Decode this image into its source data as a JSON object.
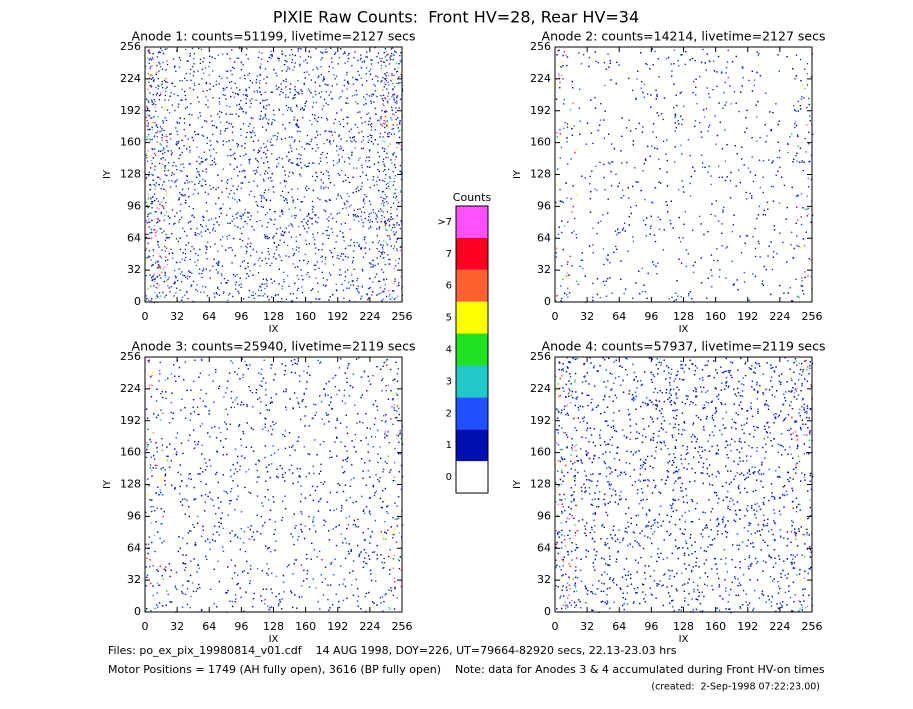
{
  "title": "PIXIE Raw Counts:  Front HV=28, Rear HV=34",
  "chart_data": [
    {
      "type": "heatmap",
      "title": "Anode 1: counts=51199, livetime=2127 secs",
      "xlabel": "IX",
      "ylabel": "IY",
      "xlim": [
        0,
        256
      ],
      "ylim": [
        0,
        256
      ],
      "xticks": [
        0,
        32,
        64,
        96,
        128,
        160,
        192,
        224,
        256
      ],
      "yticks": [
        0,
        32,
        64,
        96,
        128,
        160,
        192,
        224,
        256
      ]
    },
    {
      "type": "heatmap",
      "title": "Anode 2: counts=14214, livetime=2127 secs",
      "xlabel": "IX",
      "ylabel": "IY",
      "xlim": [
        0,
        256
      ],
      "ylim": [
        0,
        256
      ],
      "xticks": [
        0,
        32,
        64,
        96,
        128,
        160,
        192,
        224,
        256
      ],
      "yticks": [
        0,
        32,
        64,
        96,
        128,
        160,
        192,
        224,
        256
      ]
    },
    {
      "type": "heatmap",
      "title": "Anode 3: counts=25940, livetime=2119 secs",
      "xlabel": "IX",
      "ylabel": "IY",
      "xlim": [
        0,
        256
      ],
      "ylim": [
        0,
        256
      ],
      "xticks": [
        0,
        32,
        64,
        96,
        128,
        160,
        192,
        224,
        256
      ],
      "yticks": [
        0,
        32,
        64,
        96,
        128,
        160,
        192,
        224,
        256
      ]
    },
    {
      "type": "heatmap",
      "title": "Anode 4: counts=57937, livetime=2119 secs",
      "xlabel": "IX",
      "ylabel": "IY",
      "xlim": [
        0,
        256
      ],
      "ylim": [
        0,
        256
      ],
      "xticks": [
        0,
        32,
        64,
        96,
        128,
        160,
        192,
        224,
        256
      ],
      "yticks": [
        0,
        32,
        64,
        96,
        128,
        160,
        192,
        224,
        256
      ]
    }
  ],
  "colorbar": {
    "title": "Counts",
    "ticks": [
      0,
      1,
      2,
      3,
      4,
      5,
      6,
      7,
      {
        "value": 8,
        "label": ">7"
      }
    ],
    "colors": [
      "#ffffff",
      "#0010b0",
      "#2050ff",
      "#20c8c8",
      "#20e020",
      "#ffff00",
      "#ff6030",
      "#ff0020",
      "#ff50ff"
    ]
  },
  "footer": [
    "Files: po_ex_pix_19980814_v01.cdf    14 AUG 1998, DOY=226, UT=79664-82920 secs, 22.13-23.03 hrs",
    "Motor Positions = 1749 (AH fully open), 3616 (BP fully open)    Note: data for Anodes 3 & 4 accumulated during Front HV-on times",
    "(created:  2-Sep-1998 07:22:23.00)"
  ]
}
